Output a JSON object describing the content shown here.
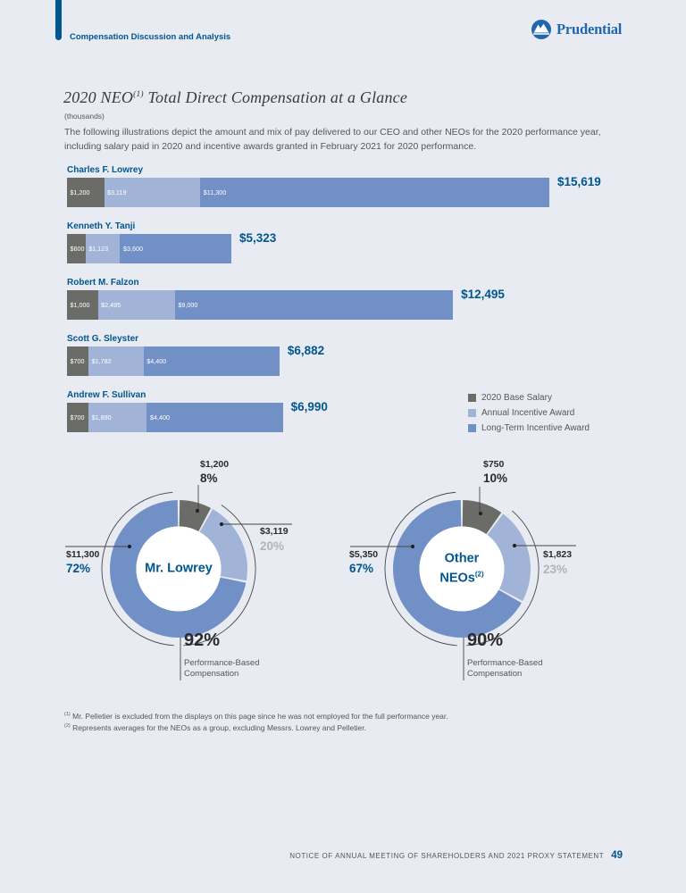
{
  "page": {
    "section_label": "Compensation Discussion and Analysis",
    "brand": "Prudential",
    "footer_text": "NOTICE OF ANNUAL MEETING OF SHAREHOLDERS AND 2021 PROXY STATEMENT",
    "page_number": "49"
  },
  "heading": {
    "title_pre": "2020 NEO",
    "title_sup": "(1)",
    "title_post": " Total Direct Compensation at a Glance",
    "units": "(thousands)",
    "intro": "The following illustrations depict the amount and mix of pay delivered to our CEO and other NEOs for the 2020 performance year, including salary paid in 2020 and incentive awards granted in February 2021 for 2020 performance."
  },
  "legend": {
    "items": [
      {
        "label": "2020 Base Salary",
        "color": "#6b6b68"
      },
      {
        "label": "Annual Incentive Award",
        "color": "#a2b3d8"
      },
      {
        "label": "Long-Term Incentive Award",
        "color": "#7190c6"
      }
    ]
  },
  "chart_data": [
    {
      "type": "bar",
      "subtype": "horizontal-stacked",
      "title": "2020 NEO Total Direct Compensation at a Glance",
      "value_units": "thousands of dollars",
      "categories": [
        "Charles F. Lowrey",
        "Kenneth Y. Tanji",
        "Robert M. Falzon",
        "Scott G. Sleyster",
        "Andrew F. Sullivan"
      ],
      "series": [
        {
          "name": "2020 Base Salary",
          "values": [
            1200,
            600,
            1000,
            700,
            700
          ]
        },
        {
          "name": "Annual Incentive Award",
          "values": [
            3119,
            1123,
            2495,
            1782,
            1890
          ]
        },
        {
          "name": "Long-Term Incentive Award",
          "values": [
            11300,
            3600,
            9000,
            4400,
            4400
          ]
        }
      ],
      "totals": [
        15619,
        5323,
        12495,
        6882,
        6990
      ],
      "xmax": 15619,
      "colors": [
        "#6b6b68",
        "#a2b3d8",
        "#7190c6"
      ],
      "rows": [
        {
          "name": "Charles F. Lowrey",
          "values": [
            1200,
            3119,
            11300
          ],
          "labels": [
            "$1,200",
            "$3,119",
            "$11,300"
          ],
          "total": 15619,
          "total_label": "$15,619"
        },
        {
          "name": "Kenneth Y. Tanji",
          "values": [
            600,
            1123,
            3600
          ],
          "labels": [
            "$600",
            "$1,123",
            "$3,600"
          ],
          "total": 5323,
          "total_label": "$5,323"
        },
        {
          "name": "Robert M. Falzon",
          "values": [
            1000,
            2495,
            9000
          ],
          "labels": [
            "$1,000",
            "$2,495",
            "$9,000"
          ],
          "total": 12495,
          "total_label": "$12,495"
        },
        {
          "name": "Scott G. Sleyster",
          "values": [
            700,
            1782,
            4400
          ],
          "labels": [
            "$700",
            "$1,782",
            "$4,400"
          ],
          "total": 6882,
          "total_label": "$6,882"
        },
        {
          "name": "Andrew F. Sullivan",
          "values": [
            700,
            1890,
            4400
          ],
          "labels": [
            "$700",
            "$1,890",
            "$4,400"
          ],
          "total": 6990,
          "total_label": "$6,990"
        }
      ]
    },
    {
      "type": "pie",
      "subtype": "donut",
      "center_line1": "Mr. Lowrey",
      "slices": [
        {
          "series": "2020 Base Salary",
          "value_label": "$1,200",
          "pct": 8,
          "pct_label": "8%",
          "color": "#6b6b68"
        },
        {
          "series": "Annual Incentive Award",
          "value_label": "$3,119",
          "pct": 20,
          "pct_label": "20%",
          "color": "#a2b3d8"
        },
        {
          "series": "Long-Term Incentive Award",
          "value_label": "$11,300",
          "pct": 72,
          "pct_label": "72%",
          "color": "#7190c6"
        }
      ],
      "callout": {
        "pct": 92,
        "pct_label": "92%",
        "desc_line1": "Performance-Based",
        "desc_line2": "Compensation"
      }
    },
    {
      "type": "pie",
      "subtype": "donut",
      "center_line1": "Other",
      "center_line2": "NEOs",
      "center_sup": "(2)",
      "slices": [
        {
          "series": "2020 Base Salary",
          "value_label": "$750",
          "pct": 10,
          "pct_label": "10%",
          "color": "#6b6b68"
        },
        {
          "series": "Annual Incentive Award",
          "value_label": "$1,823",
          "pct": 23,
          "pct_label": "23%",
          "color": "#a2b3d8"
        },
        {
          "series": "Long-Term Incentive Award",
          "value_label": "$5,350",
          "pct": 67,
          "pct_label": "67%",
          "color": "#7190c6"
        }
      ],
      "callout": {
        "pct": 90,
        "pct_label": "90%",
        "desc_line1": "Performance-Based",
        "desc_line2": "Compensation"
      }
    }
  ],
  "footnotes": [
    {
      "sup": "(1)",
      "text": "Mr. Pelletier is excluded from the displays on this page since he was not employed for the full performance year."
    },
    {
      "sup": "(2)",
      "text": "Represents averages for the NEOs as a group, excluding Messrs. Lowrey and Pelletier."
    }
  ]
}
